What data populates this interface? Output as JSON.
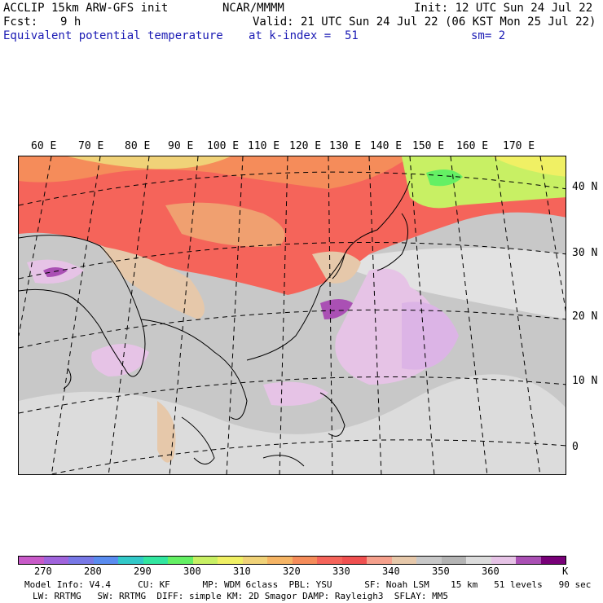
{
  "header": {
    "model": "ACCLIP 15km ARW-GFS init",
    "org": "NCAR/MMMM",
    "init": "Init: 12 UTC Sun 24 Jul 22",
    "fcst_label": "Fcst:",
    "fcst_value": "9 h",
    "valid": "Valid: 21 UTC Sun 24 Jul 22 (06 KST Mon 25 Jul 22)",
    "field": "Equivalent potential temperature",
    "level": "at k-index =  51",
    "smooth": "sm= 2"
  },
  "map": {
    "lon_labels": [
      "60 E",
      "70 E",
      "80 E",
      "90 E",
      "100 E",
      "110 E",
      "120 E",
      "130 E",
      "140 E",
      "150 E",
      "160 E",
      "170 E"
    ],
    "lat_labels": [
      "40 N",
      "30 N",
      "20 N",
      "10 N",
      "0"
    ]
  },
  "colorbar": {
    "colors": [
      "#c85ac8",
      "#a064dc",
      "#7878e6",
      "#5a8cf0",
      "#32c8c8",
      "#32e6a0",
      "#64f064",
      "#c8f064",
      "#f0f064",
      "#f0d278",
      "#f5b464",
      "#f58c5a",
      "#f5645a",
      "#f05050",
      "#f5a08c",
      "#e6c8aa",
      "#c8c8c8",
      "#b4b4b4",
      "#dcdcdc",
      "#e6c3e6",
      "#aa50b4",
      "#780078"
    ],
    "ticks": [
      "270",
      "280",
      "290",
      "300",
      "310",
      "320",
      "330",
      "340",
      "350",
      "360",
      "K"
    ]
  },
  "footer": {
    "line1": "Model Info: V4.4     CU: KF      MP: WDM 6class  PBL: YSU      SF: Noah LSM    15 km   51 levels   90 sec",
    "line2": "LW: RRTMG   SW: RRTMG  DIFF: simple KM: 2D Smagor DAMP: Rayleigh3  SFLAY: MM5"
  }
}
